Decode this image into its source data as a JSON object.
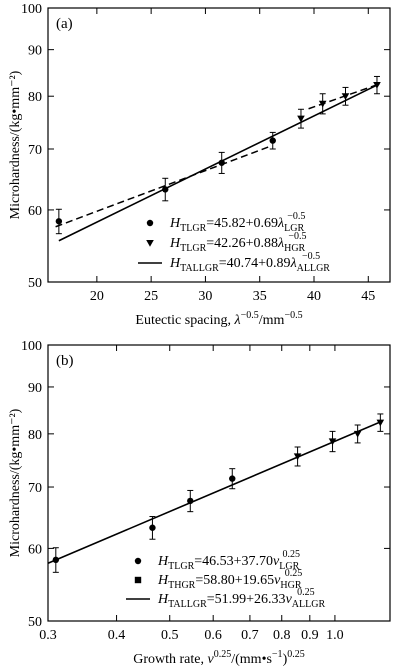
{
  "chart_data": [
    {
      "type": "scatter",
      "panel_label": "(a)",
      "xscale": "linear",
      "yscale": "log",
      "xlim": [
        15.5,
        47
      ],
      "ylim": [
        50,
        100
      ],
      "xticks": [
        20,
        25,
        30,
        35,
        40,
        45
      ],
      "xtick_labels": [
        "20",
        "25",
        "30",
        "35",
        "40",
        "45"
      ],
      "yticks": [
        50,
        60,
        70,
        80,
        90,
        100
      ],
      "ytick_labels": [
        "50",
        "60",
        "70",
        "80",
        "90",
        "100"
      ],
      "xlabel": {
        "main": "Eutectic spacing, ",
        "var": "λ",
        "sup": "−0.5",
        "unit": "/mm",
        "unit_sup": "−0.5"
      },
      "ylabel": "Microhardness/(kg•mm⁻²)",
      "series": [
        {
          "marker": "circle",
          "line": "dashed",
          "x": [
            16.5,
            26.3,
            31.5,
            36.2
          ],
          "y": [
            58.3,
            63.2,
            67.6,
            71.5
          ],
          "err": [
            1.8,
            1.8,
            1.8,
            1.5
          ],
          "fit": {
            "x": [
              16.2,
              36.0
            ],
            "y": [
              57.5,
              70.5
            ]
          },
          "legend": {
            "prefix": "H",
            "prefix_sub": "TLGR",
            "text": "=45.82+0.69",
            "var": "λ",
            "var_sub": "LGR",
            "var_sup": "−0.5"
          }
        },
        {
          "marker": "triangle",
          "line": "dashed",
          "x": [
            40.8,
            42.9,
            45.8
          ],
          "y": [
            78.5,
            80.0,
            82.3
          ],
          "err": [
            2.0,
            1.8,
            1.8
          ],
          "fit": {
            "x": [
              39.5,
              46.0
            ],
            "y": [
              77.5,
              82.5
            ]
          },
          "legend": {
            "prefix": "H",
            "prefix_sub": "TLGR",
            "text": "=42.26+0.88",
            "var": "λ",
            "var_sub": "HGR",
            "var_sup": "−0.5"
          }
        }
      ],
      "fit_all": {
        "x": [
          16.5,
          46.0
        ],
        "y": [
          55.5,
          82.5
        ],
        "legend": {
          "prefix": "H",
          "prefix_sub": "TALLGR",
          "text": "=40.74+0.89",
          "var": "λ",
          "var_sub": "ALLGR",
          "var_sup": "−0.5"
        }
      },
      "extra_points": [
        {
          "x": 38.8,
          "y": 75.6,
          "err": 1.8
        }
      ]
    },
    {
      "type": "scatter",
      "panel_label": "(b)",
      "xscale": "log",
      "yscale": "log",
      "xlim": [
        0.3,
        1.26
      ],
      "ylim": [
        50,
        100
      ],
      "xticks": [
        0.3,
        0.4,
        0.5,
        0.6,
        0.7,
        0.8,
        0.9,
        1.0
      ],
      "xtick_labels": [
        "0.3",
        "0.4",
        "0.5",
        "0.6",
        "0.7",
        "0.8",
        "0.9",
        "1.0"
      ],
      "yticks": [
        50,
        60,
        70,
        80,
        90,
        100
      ],
      "ytick_labels": [
        "50",
        "60",
        "70",
        "80",
        "90",
        "100"
      ],
      "xlabel": {
        "main": "Growth rate, ",
        "var": "v",
        "sup": "0.25",
        "unit": "/(mm•s",
        "unit_sup": "−1",
        "unit_end": ")",
        "unit_end_sup": "0.25"
      },
      "ylabel": "Microhardness/(kg•mm⁻²)",
      "series": [
        {
          "marker": "circle",
          "x": [
            0.31,
            0.465,
            0.545,
            0.65
          ],
          "y": [
            58.3,
            63.2,
            67.6,
            71.5
          ],
          "err": [
            1.8,
            1.8,
            1.8,
            1.8
          ],
          "legend": {
            "prefix": "H",
            "prefix_sub": "TLGR",
            "text": "=46.53+37.70",
            "var": "v",
            "var_sub": "LGR",
            "var_sup": "0.25"
          }
        },
        {
          "marker": "triangle",
          "x": [
            0.855,
            0.99,
            1.1,
            1.21
          ],
          "y": [
            75.6,
            78.5,
            80.0,
            82.3
          ],
          "err": [
            1.8,
            2.0,
            1.8,
            1.8
          ],
          "legend": {
            "prefix": "H",
            "prefix_sub": "THGR",
            "text": "=58.80+19.65",
            "var": "v",
            "var_sub": "HGR",
            "var_sup": "0.25"
          }
        }
      ],
      "fit_all": {
        "x": [
          0.3,
          1.22
        ],
        "y": [
          57.8,
          82.6
        ],
        "legend": {
          "prefix": "H",
          "prefix_sub": "TALLGR",
          "text": "=51.99+26.33",
          "var": "v",
          "var_sub": "ALLGR",
          "var_sup": "0.25"
        }
      },
      "legend_second_marker": "square"
    }
  ]
}
